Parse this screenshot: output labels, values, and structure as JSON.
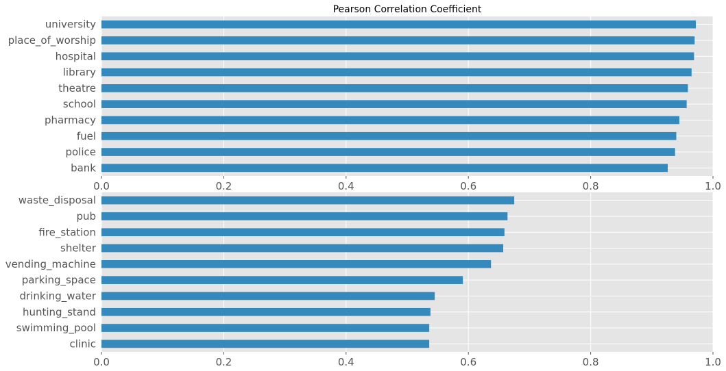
{
  "title": "Pearson Correlation Coefficient",
  "colors": {
    "bar": "#348abd",
    "panel_background": "#e5e5e5",
    "grid": "#ffffff",
    "tick_text": "#555555",
    "title_text": "#000000"
  },
  "chart_data": [
    {
      "type": "bar",
      "orientation": "horizontal",
      "title": "Pearson Correlation Coefficient",
      "categories": [
        "university",
        "place_of_worship",
        "hospital",
        "library",
        "theatre",
        "school",
        "pharmacy",
        "fuel",
        "police",
        "bank"
      ],
      "values": [
        0.972,
        0.97,
        0.969,
        0.965,
        0.959,
        0.957,
        0.945,
        0.94,
        0.938,
        0.926
      ],
      "xlim": [
        0,
        1
      ],
      "xticks": [
        "0.0",
        "0.2",
        "0.4",
        "0.6",
        "0.8",
        "1.0"
      ],
      "xlabel": "",
      "ylabel": "",
      "grid": true,
      "legend": false
    },
    {
      "type": "bar",
      "orientation": "horizontal",
      "title": "",
      "categories": [
        "waste_disposal",
        "pub",
        "fire_station",
        "shelter",
        "vending_machine",
        "parking_space",
        "drinking_water",
        "hunting_stand",
        "swimming_pool",
        "clinic"
      ],
      "values": [
        0.675,
        0.664,
        0.659,
        0.657,
        0.637,
        0.591,
        0.545,
        0.538,
        0.536,
        0.536
      ],
      "xlim": [
        0,
        1
      ],
      "xticks": [
        "0.0",
        "0.2",
        "0.4",
        "0.6",
        "0.8",
        "1.0"
      ],
      "xlabel": "",
      "ylabel": "",
      "grid": true,
      "legend": false
    }
  ]
}
